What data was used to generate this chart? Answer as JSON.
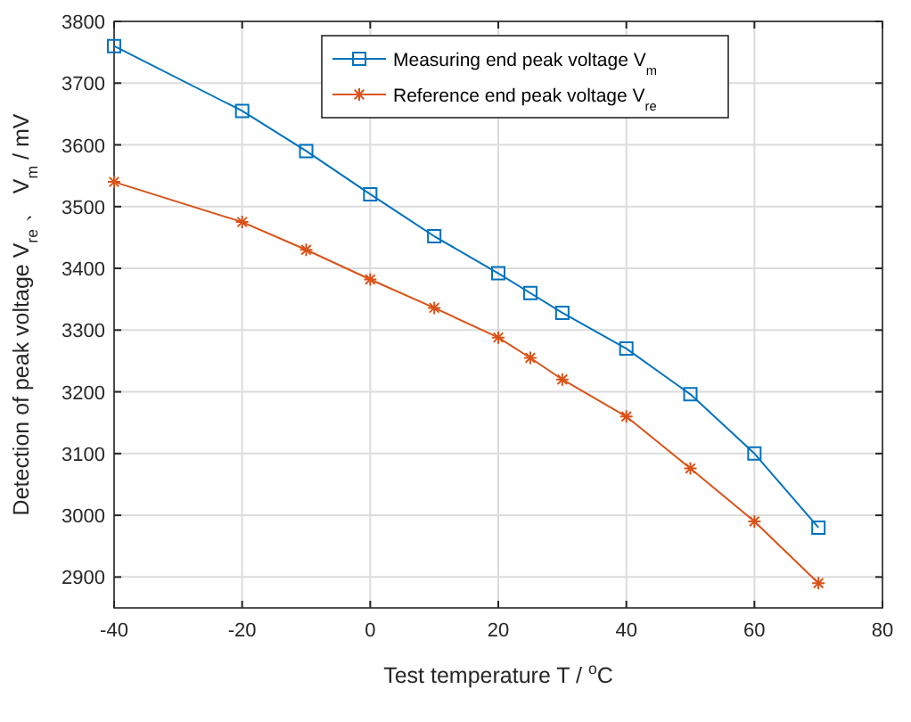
{
  "chart_data": {
    "type": "line",
    "xlabel": "Test temperature T / $^{o}$C",
    "ylabel": "Detection of peak voltage V$_{re}$ 、 V$_{m}$ / mV",
    "x": [
      -40,
      -20,
      -10,
      0,
      10,
      20,
      25,
      30,
      40,
      50,
      60,
      70
    ],
    "xlim": [
      -40,
      80
    ],
    "xticks": [
      -40,
      -20,
      0,
      20,
      40,
      60,
      80
    ],
    "ylim": [
      2850,
      3800
    ],
    "yticks": [
      2900,
      3000,
      3100,
      3200,
      3300,
      3400,
      3500,
      3600,
      3700,
      3800
    ],
    "grid": true,
    "legend": "top",
    "line_style": "solid",
    "series": [
      {
        "name": "Measuring end peak voltage V$_{m}$",
        "color": "#0072bd",
        "marker": "square",
        "values": [
          3760,
          3655,
          3590,
          3520,
          3452,
          3392,
          3360,
          3328,
          3270,
          3196,
          3100,
          2980
        ]
      },
      {
        "name": "Reference end peak voltage V$_{re}$",
        "color": "#d95319",
        "marker": "cross",
        "values": [
          3540,
          3475,
          3430,
          3382,
          3336,
          3288,
          3255,
          3220,
          3160,
          3076,
          2990,
          2890
        ]
      }
    ]
  }
}
